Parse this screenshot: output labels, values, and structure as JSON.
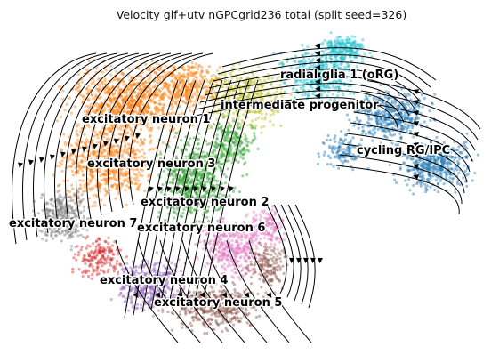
{
  "title": "Velocity glf+utv nGPCgrid236 total (split seed=326)",
  "clusters": [
    {
      "id": "rg",
      "label": "radial glia 1 (oRG)",
      "color": "#17becf"
    },
    {
      "id": "ip",
      "label": "intermediate progenitor",
      "color": "#bcbd22"
    },
    {
      "id": "cy",
      "label": "cycling RG/IPC",
      "color": "#1f77b4"
    },
    {
      "id": "en1",
      "label": "excitatory neuron 1",
      "color": "#ff7f0e"
    },
    {
      "id": "en3",
      "label": "excitatory neuron 3",
      "color": "#ff7f0e"
    },
    {
      "id": "en2",
      "label": "excitatory neuron 2",
      "color": "#2ca02c"
    },
    {
      "id": "en7",
      "label": "excitatory neuron 7",
      "color": "#7f7f7f"
    },
    {
      "id": "en6",
      "label": "excitatory neuron 6",
      "color": "#e377c2"
    },
    {
      "id": "en4",
      "label": "excitatory neuron 4",
      "color": "#9467bd"
    },
    {
      "id": "en5",
      "label": "excitatory neuron 5",
      "color": "#8c564b"
    }
  ],
  "colors": {
    "streamline": "#000000",
    "background": "#ffffff",
    "extra": "#d62728"
  }
}
